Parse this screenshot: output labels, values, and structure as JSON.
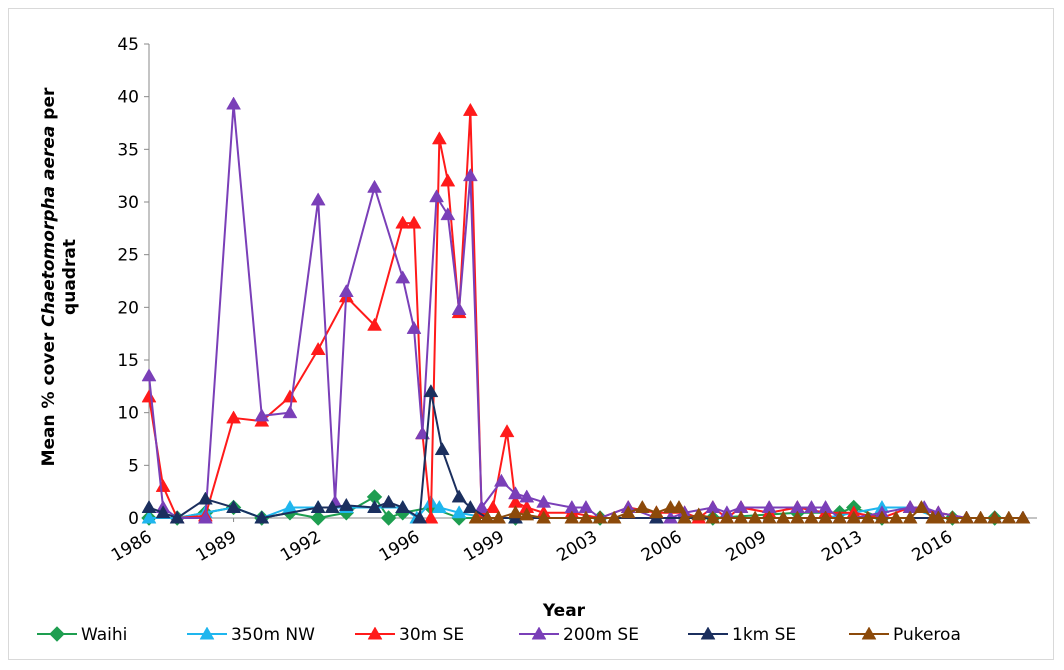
{
  "chart_data": {
    "type": "line",
    "title": "",
    "xlabel": "Year",
    "ylabel_parts": [
      "Mean % cover ",
      "Chaetomorpha aerea",
      " per"
    ],
    "ylabel_line2": "quadrat",
    "ylim": [
      0,
      45
    ],
    "yticks": [
      "0",
      "5",
      "10",
      "15",
      "20",
      "25",
      "30",
      "35",
      "40",
      "45"
    ],
    "xlim": [
      1986,
      2017.5
    ],
    "xticks": [
      "1986",
      "1989",
      "1992",
      "1996",
      "1999",
      "2003",
      "2006",
      "2009",
      "2013",
      "2016"
    ],
    "xtick_values": [
      1986,
      1989,
      1992,
      1995.5,
      1998.5,
      2001.8,
      2004.8,
      2007.8,
      2011.2,
      2014.4
    ],
    "grid": false,
    "legend_position": "bottom",
    "series": [
      {
        "name": "Waihi",
        "color": "#1e9e50",
        "marker": "diamond",
        "points": [
          [
            1986,
            0
          ],
          [
            1987,
            0
          ],
          [
            1988,
            0.5
          ],
          [
            1989,
            1
          ],
          [
            1990,
            0
          ],
          [
            1991,
            0.5
          ],
          [
            1992,
            0
          ],
          [
            1993,
            0.5
          ],
          [
            1994,
            2
          ],
          [
            1994.5,
            0
          ],
          [
            1995,
            0.5
          ],
          [
            1996,
            1
          ],
          [
            1997,
            0
          ],
          [
            1999,
            0
          ],
          [
            2002,
            0
          ],
          [
            2006,
            0
          ],
          [
            2009,
            0.5
          ],
          [
            2010.5,
            0.5
          ],
          [
            2011,
            1
          ],
          [
            2012,
            0
          ],
          [
            2014.5,
            0
          ],
          [
            2016,
            0
          ]
        ]
      },
      {
        "name": "350m NW",
        "color": "#1fb6ee",
        "marker": "triangle",
        "points": [
          [
            1986,
            0
          ],
          [
            1987,
            0
          ],
          [
            1988,
            0.5
          ],
          [
            1989,
            1
          ],
          [
            1990,
            0
          ],
          [
            1991,
            1
          ],
          [
            1992,
            1
          ],
          [
            1993,
            1
          ],
          [
            1994,
            1
          ],
          [
            1995,
            1
          ],
          [
            1995.5,
            0
          ],
          [
            1996,
            1.5
          ],
          [
            1996.3,
            1
          ],
          [
            1997,
            0.5
          ],
          [
            1998,
            0
          ],
          [
            1999,
            0
          ],
          [
            2002,
            0
          ],
          [
            2005,
            0
          ],
          [
            2010,
            0
          ],
          [
            2012,
            1
          ],
          [
            2013,
            1
          ],
          [
            2014,
            0
          ],
          [
            2015,
            0
          ],
          [
            2016,
            0
          ],
          [
            2017,
            0
          ]
        ]
      },
      {
        "name": "30m SE",
        "color": "#ff1a1a",
        "marker": "triangle",
        "points": [
          [
            1986,
            11.5
          ],
          [
            1986.5,
            3
          ],
          [
            1987,
            0
          ],
          [
            1988,
            0.2
          ],
          [
            1989,
            9.5
          ],
          [
            1990,
            9.2
          ],
          [
            1991,
            11.5
          ],
          [
            1992,
            16
          ],
          [
            1993,
            21
          ],
          [
            1994,
            18.3
          ],
          [
            1995,
            28
          ],
          [
            1995.4,
            28
          ],
          [
            1995.7,
            8
          ],
          [
            1996,
            0
          ],
          [
            1996.3,
            36
          ],
          [
            1996.6,
            32
          ],
          [
            1997,
            19.5
          ],
          [
            1997.4,
            38.7
          ],
          [
            1997.8,
            0.5
          ],
          [
            1998.2,
            1
          ],
          [
            1998.7,
            8.2
          ],
          [
            1999,
            1.5
          ],
          [
            1999.4,
            1
          ],
          [
            2000,
            0.5
          ],
          [
            2001,
            0.5
          ],
          [
            2002,
            0
          ],
          [
            2003,
            1
          ],
          [
            2004,
            0.5
          ],
          [
            2005,
            0.5
          ],
          [
            2005.5,
            0
          ],
          [
            2006,
            1
          ],
          [
            2006.5,
            0
          ],
          [
            2007,
            1
          ],
          [
            2008,
            0.5
          ],
          [
            2009,
            1
          ],
          [
            2010,
            0.5
          ],
          [
            2011,
            0.5
          ],
          [
            2012,
            0
          ],
          [
            2013,
            1
          ],
          [
            2014,
            0.5
          ],
          [
            2015,
            0
          ],
          [
            2016,
            0
          ],
          [
            2017,
            0
          ]
        ]
      },
      {
        "name": "200m SE",
        "color": "#7a3fb8",
        "marker": "triangle",
        "points": [
          [
            1986,
            13.5
          ],
          [
            1986.5,
            1
          ],
          [
            1987,
            0
          ],
          [
            1988,
            0
          ],
          [
            1989,
            39.3
          ],
          [
            1990,
            9.7
          ],
          [
            1991,
            10
          ],
          [
            1992,
            30.2
          ],
          [
            1992.6,
            1.5
          ],
          [
            1993,
            21.5
          ],
          [
            1994,
            31.4
          ],
          [
            1995,
            22.8
          ],
          [
            1995.4,
            18
          ],
          [
            1995.7,
            8
          ],
          [
            1996.2,
            30.5
          ],
          [
            1996.6,
            28.8
          ],
          [
            1997,
            19.8
          ],
          [
            1997.4,
            32.5
          ],
          [
            1997.8,
            1
          ],
          [
            1998.5,
            3.5
          ],
          [
            1999,
            2.3
          ],
          [
            1999.4,
            2
          ],
          [
            2000,
            1.5
          ],
          [
            2001,
            1
          ],
          [
            2001.5,
            1
          ],
          [
            2002,
            0
          ],
          [
            2003,
            1
          ],
          [
            2004,
            0
          ],
          [
            2004.5,
            0
          ],
          [
            2005,
            0.5
          ],
          [
            2006,
            1
          ],
          [
            2006.5,
            0.5
          ],
          [
            2007,
            1
          ],
          [
            2008,
            1
          ],
          [
            2009,
            1
          ],
          [
            2009.5,
            1
          ],
          [
            2010,
            1
          ],
          [
            2010.5,
            0
          ],
          [
            2011,
            0
          ],
          [
            2012,
            0.5
          ],
          [
            2013,
            1
          ],
          [
            2013.5,
            1
          ],
          [
            2014,
            0.5
          ],
          [
            2015,
            0
          ],
          [
            2016,
            0
          ],
          [
            2017,
            0
          ]
        ]
      },
      {
        "name": "1km SE",
        "color": "#1b2f5e",
        "marker": "triangle",
        "points": [
          [
            1986,
            1
          ],
          [
            1986.5,
            0.5
          ],
          [
            1987,
            0
          ],
          [
            1988,
            1.8
          ],
          [
            1989,
            1
          ],
          [
            1990,
            0
          ],
          [
            1992,
            1
          ],
          [
            1992.5,
            1
          ],
          [
            1993,
            1.2
          ],
          [
            1994,
            1
          ],
          [
            1994.5,
            1.5
          ],
          [
            1995,
            1
          ],
          [
            1995.6,
            0
          ],
          [
            1996,
            12
          ],
          [
            1996.4,
            6.5
          ],
          [
            1997,
            2
          ],
          [
            1997.4,
            1
          ],
          [
            1998,
            0
          ],
          [
            1999,
            0
          ],
          [
            2002,
            0
          ],
          [
            2004,
            0
          ],
          [
            2006,
            0
          ],
          [
            2008,
            0
          ],
          [
            2010,
            0
          ],
          [
            2012,
            0
          ],
          [
            2014,
            0
          ],
          [
            2016,
            0
          ],
          [
            2017,
            0
          ]
        ]
      },
      {
        "name": "Pukeroa",
        "color": "#8c4a0a",
        "marker": "triangle",
        "points": [
          [
            1997.6,
            0
          ],
          [
            1998,
            0
          ],
          [
            1998.4,
            0
          ],
          [
            1999,
            0.5
          ],
          [
            1999.4,
            0.3
          ],
          [
            2000,
            0
          ],
          [
            2001,
            0
          ],
          [
            2001.5,
            0
          ],
          [
            2002,
            0
          ],
          [
            2002.5,
            0
          ],
          [
            2003,
            0.5
          ],
          [
            2003.5,
            1
          ],
          [
            2004,
            0.5
          ],
          [
            2004.5,
            1
          ],
          [
            2004.8,
            1
          ],
          [
            2005,
            0
          ],
          [
            2005.5,
            0.3
          ],
          [
            2006,
            0
          ],
          [
            2006.5,
            0
          ],
          [
            2007,
            0
          ],
          [
            2007.5,
            0
          ],
          [
            2008,
            0
          ],
          [
            2008.5,
            0
          ],
          [
            2009,
            0
          ],
          [
            2009.5,
            0
          ],
          [
            2010,
            0
          ],
          [
            2010.5,
            0
          ],
          [
            2011,
            0
          ],
          [
            2011.5,
            0
          ],
          [
            2012,
            0
          ],
          [
            2012.5,
            0
          ],
          [
            2013,
            0
          ],
          [
            2013.4,
            1
          ],
          [
            2013.8,
            0
          ],
          [
            2014,
            0
          ],
          [
            2014.5,
            0
          ],
          [
            2015,
            0
          ],
          [
            2015.5,
            0
          ],
          [
            2016,
            0
          ],
          [
            2016.5,
            0
          ],
          [
            2017,
            0
          ]
        ]
      }
    ]
  }
}
